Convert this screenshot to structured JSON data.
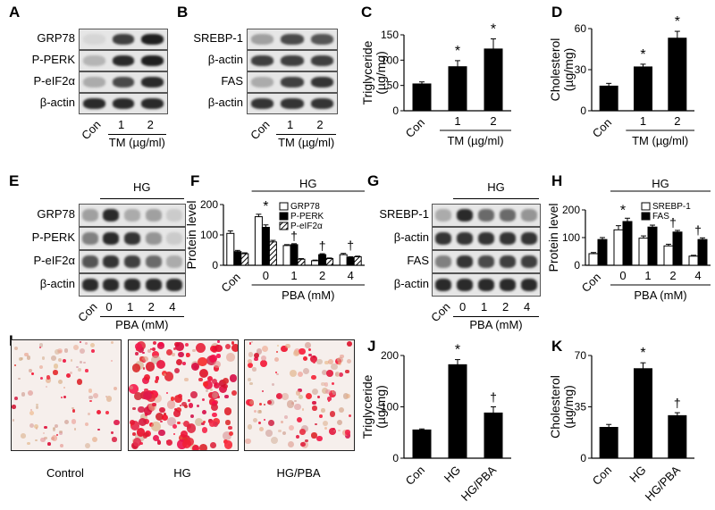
{
  "panel_letters": [
    "A",
    "B",
    "C",
    "D",
    "E",
    "F",
    "G",
    "H",
    "I",
    "J",
    "K"
  ],
  "blot_A": {
    "rows": [
      "GRP78",
      "P-PERK",
      "P-eIF2α",
      "β-actin"
    ],
    "lanes": [
      "Con",
      "1",
      "2"
    ],
    "xlabel": "TM (µg/ml)",
    "intensity": [
      [
        0.1,
        0.8,
        0.95
      ],
      [
        0.25,
        0.9,
        0.95
      ],
      [
        0.3,
        0.75,
        0.9
      ],
      [
        0.9,
        0.9,
        0.9
      ]
    ]
  },
  "blot_B": {
    "rows": [
      "SREBP-1",
      "β-actin",
      "FAS",
      "β-actin"
    ],
    "lanes": [
      "Con",
      "1",
      "2"
    ],
    "xlabel": "TM (µg/ml)",
    "intensity": [
      [
        0.35,
        0.75,
        0.7
      ],
      [
        0.8,
        0.8,
        0.8
      ],
      [
        0.3,
        0.8,
        0.85
      ],
      [
        0.85,
        0.85,
        0.85
      ]
    ]
  },
  "blot_E": {
    "rows": [
      "GRP78",
      "P-PERK",
      "P-eIF2α",
      "β-actin"
    ],
    "lanes": [
      "Con",
      "0",
      "1",
      "2",
      "4"
    ],
    "group": "HG",
    "xlabel": "PBA (mM)",
    "intensity": [
      [
        0.35,
        0.9,
        0.3,
        0.35,
        0.15
      ],
      [
        0.5,
        0.9,
        0.85,
        0.4,
        0.15
      ],
      [
        0.7,
        0.85,
        0.8,
        0.6,
        0.3
      ],
      [
        0.9,
        0.9,
        0.9,
        0.9,
        0.9
      ]
    ]
  },
  "blot_G": {
    "rows": [
      "SREBP-1",
      "β-actin",
      "FAS",
      "β-actin"
    ],
    "lanes": [
      "Con",
      "0",
      "1",
      "2",
      "4"
    ],
    "group": "HG",
    "xlabel": "PBA (mM)",
    "intensity": [
      [
        0.3,
        0.9,
        0.6,
        0.6,
        0.4
      ],
      [
        0.85,
        0.85,
        0.85,
        0.85,
        0.85
      ],
      [
        0.5,
        0.85,
        0.75,
        0.8,
        0.8
      ],
      [
        0.9,
        0.9,
        0.9,
        0.9,
        0.9
      ]
    ]
  },
  "micrographs": {
    "labels": [
      "Control",
      "HG",
      "HG/PBA"
    ],
    "density": [
      0.25,
      0.85,
      0.45
    ]
  },
  "chart_data": [
    {
      "id": "C",
      "type": "bar",
      "categories": [
        "Con",
        "1",
        "2"
      ],
      "values": [
        53,
        87,
        122
      ],
      "errors": [
        4,
        12,
        20
      ],
      "ylabel": "Triglyceride\n(µg/mg)",
      "ylim": [
        0,
        150
      ],
      "yticks": [
        0,
        50,
        100,
        150
      ],
      "xlabel": "TM (µg/ml)",
      "marks": [
        "",
        "*",
        "*"
      ]
    },
    {
      "id": "D",
      "type": "bar",
      "categories": [
        "Con",
        "1",
        "2"
      ],
      "values": [
        18,
        32,
        53
      ],
      "errors": [
        2,
        2,
        5
      ],
      "ylabel": "Cholesterol\n(µg/mg)",
      "ylim": [
        0,
        60
      ],
      "yticks": [
        0,
        30,
        60
      ],
      "xlabel": "TM (µg/ml)",
      "marks": [
        "",
        "*",
        "*"
      ]
    },
    {
      "id": "F",
      "type": "bar",
      "categories": [
        "Con",
        "0",
        "1",
        "2",
        "4"
      ],
      "group": "HG",
      "xlabel": "PBA (mM)",
      "ylabel": "Protein level",
      "ylim": [
        0,
        200
      ],
      "yticks": [
        0,
        100,
        200
      ],
      "series": [
        {
          "name": "GRP78",
          "fill": "white",
          "values": [
            105,
            160,
            65,
            15,
            35
          ],
          "errors": [
            8,
            8,
            3,
            2,
            4
          ]
        },
        {
          "name": "P-PERK",
          "fill": "black",
          "values": [
            45,
            125,
            68,
            35,
            25
          ],
          "errors": [
            4,
            8,
            3,
            3,
            3
          ]
        },
        {
          "name": "P-eIF2α",
          "fill": "hatch",
          "values": [
            38,
            77,
            20,
            22,
            28
          ],
          "errors": [
            3,
            5,
            2,
            2,
            2
          ]
        }
      ],
      "marks": [
        "",
        "*",
        "†",
        "†",
        "†"
      ]
    },
    {
      "id": "H",
      "type": "bar",
      "categories": [
        "Con",
        "0",
        "1",
        "2",
        "4"
      ],
      "group": "HG",
      "xlabel": "PBA (mM)",
      "ylabel": "Protein level",
      "ylim": [
        0,
        200
      ],
      "yticks": [
        0,
        100,
        200
      ],
      "series": [
        {
          "name": "SREBP-1",
          "fill": "white",
          "values": [
            42,
            128,
            98,
            70,
            33
          ],
          "errors": [
            4,
            15,
            8,
            6,
            3
          ]
        },
        {
          "name": "FAS",
          "fill": "black",
          "values": [
            93,
            158,
            138,
            120,
            93
          ],
          "errors": [
            7,
            12,
            7,
            6,
            6
          ]
        }
      ],
      "marks": [
        "",
        "*",
        "",
        "†",
        "†"
      ]
    },
    {
      "id": "J",
      "type": "bar",
      "categories": [
        "Con",
        "HG",
        "HG/PBA"
      ],
      "values": [
        55,
        182,
        88
      ],
      "errors": [
        2,
        10,
        12
      ],
      "ylabel": "Triglyceride\n(µg/mg)",
      "ylim": [
        0,
        200
      ],
      "yticks": [
        0,
        100,
        200
      ],
      "marks": [
        "",
        "*",
        "†"
      ]
    },
    {
      "id": "K",
      "type": "bar",
      "categories": [
        "Con",
        "HG",
        "HG/PBA"
      ],
      "values": [
        21,
        61,
        29
      ],
      "errors": [
        2,
        4,
        2
      ],
      "ylabel": "Cholesterol\n(µg/mg)",
      "ylim": [
        0,
        70
      ],
      "yticks": [
        0,
        35,
        70
      ],
      "marks": [
        "",
        "*",
        "†"
      ]
    }
  ]
}
